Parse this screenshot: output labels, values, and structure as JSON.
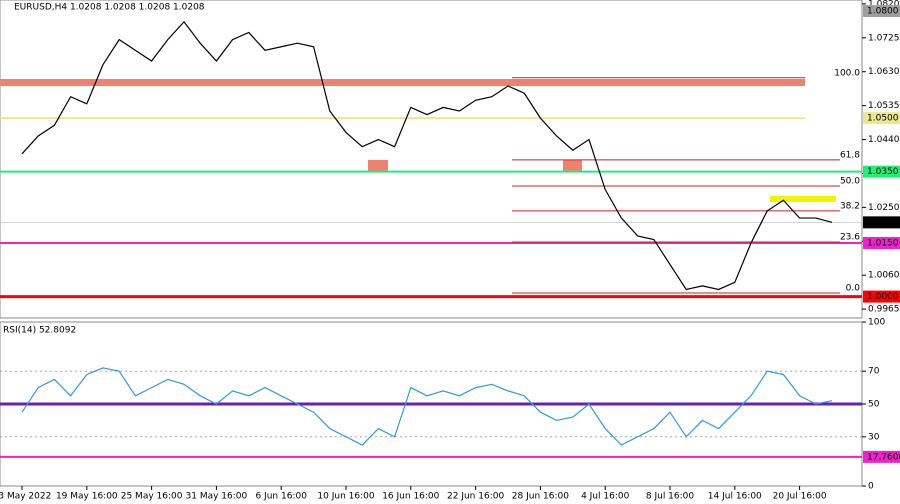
{
  "chart_data": [
    {
      "type": "line",
      "title": "EURUSD,H4  1.0208 1.0208 1.0208 1.0208",
      "color": "#000000",
      "categories": [
        "13 May 2022",
        null,
        null,
        null,
        "19 May 16:00",
        null,
        null,
        null,
        "25 May 16:00",
        null,
        null,
        null,
        "31 May 16:00",
        null,
        null,
        null,
        "6 Jun 16:00",
        null,
        null,
        null,
        "10 Jun 16:00",
        null,
        null,
        null,
        "16 Jun 16:00",
        null,
        null,
        null,
        "22 Jun 16:00",
        null,
        null,
        null,
        "28 Jun 16:00",
        null,
        null,
        null,
        "4 Jul 16:00",
        null,
        null,
        null,
        "8 Jul 16:00",
        null,
        null,
        null,
        "14 Jul 16:00",
        null,
        null,
        null,
        "20 Jul 16:00",
        null,
        null
      ],
      "values": [
        1.04,
        1.045,
        1.048,
        1.056,
        1.054,
        1.065,
        1.072,
        1.069,
        1.066,
        1.072,
        1.077,
        1.071,
        1.066,
        1.072,
        1.074,
        1.069,
        1.07,
        1.071,
        1.07,
        1.052,
        1.046,
        1.042,
        1.044,
        1.042,
        1.053,
        1.051,
        1.053,
        1.052,
        1.055,
        1.056,
        1.059,
        1.057,
        1.05,
        1.045,
        1.041,
        1.044,
        1.03,
        1.022,
        1.017,
        1.016,
        1.009,
        1.002,
        1.003,
        1.002,
        1.004,
        1.015,
        1.024,
        1.027,
        1.022,
        1.022,
        1.0208
      ],
      "ylim": [
        0.994,
        1.0831
      ],
      "yticks": [
        {
          "value": 1.082,
          "label": "1.0820"
        },
        {
          "value": 1.0725,
          "label": "1.0725"
        },
        {
          "value": 1.063,
          "label": "1.0630"
        },
        {
          "value": 1.0535,
          "label": "1.0535"
        },
        {
          "value": 1.044,
          "label": "1.0440"
        },
        {
          "value": 1.0345,
          "label": "1.0345"
        },
        {
          "value": 1.025,
          "label": "1.0250"
        },
        {
          "value": 1.0155,
          "label": "1.0155"
        },
        {
          "value": 1.006,
          "label": "1.0060"
        },
        {
          "value": 0.9965,
          "label": "0.9965"
        }
      ],
      "levels": [
        {
          "value": 1.08,
          "label": "1.0800",
          "color": "#9e9e9e"
        },
        {
          "value": 1.06,
          "color": "#f08070"
        },
        {
          "value": 1.05,
          "label": "1.0500",
          "color": "#e8e890"
        },
        {
          "value": 1.035,
          "label": "1.0350",
          "color": "#22ee77"
        },
        {
          "value": 1.0208,
          "label": "1.0208",
          "color": "#000000"
        },
        {
          "value": 1.015,
          "label": "1.0150",
          "color": "#ee22cc"
        },
        {
          "value": 1.0,
          "label": "1.0000",
          "color": "#ff0000"
        }
      ],
      "fibo": [
        {
          "value": 1.0613,
          "label": "100.0"
        },
        {
          "value": 1.0383,
          "label": "61.8"
        },
        {
          "value": 1.031,
          "label": "50.0"
        },
        {
          "value": 1.024,
          "label": "38.2"
        },
        {
          "value": 1.0153,
          "label": "23.6"
        },
        {
          "value": 1.001,
          "label": "0.0"
        }
      ],
      "fibo_color": "#cc2222"
    },
    {
      "type": "line",
      "title": "RSI(14) 52.8092",
      "color": "#3399dd",
      "values": [
        45,
        60,
        65,
        55,
        68,
        72,
        70,
        55,
        60,
        65,
        62,
        55,
        50,
        58,
        55,
        60,
        55,
        50,
        45,
        35,
        30,
        25,
        35,
        30,
        60,
        55,
        58,
        55,
        60,
        62,
        58,
        55,
        45,
        40,
        42,
        50,
        35,
        25,
        30,
        35,
        45,
        30,
        40,
        35,
        45,
        55,
        70,
        68,
        55,
        50,
        52
      ],
      "ylim": [
        0,
        100
      ],
      "yticks": [
        0,
        30,
        50,
        70,
        100
      ],
      "levels": [
        {
          "value": 50,
          "color": "#6622aa"
        },
        {
          "value": 17.76,
          "label": "17.7600",
          "color": "#ee22cc"
        }
      ]
    }
  ]
}
